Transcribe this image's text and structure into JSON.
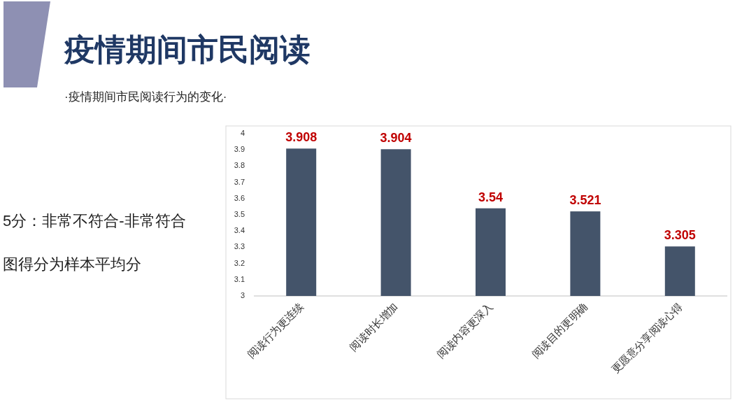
{
  "chart_data": {
    "type": "bar",
    "title": "疫情期间市民阅读",
    "subtitle": "·疫情期间市民阅读行为的变化·",
    "categories": [
      "阅读行为更连续",
      "阅读时长增加",
      "阅读内容更深入",
      "阅读目的更明确",
      "更愿意分享阅读心得"
    ],
    "values": [
      3.908,
      3.904,
      3.54,
      3.521,
      3.305
    ],
    "color": "#44546a",
    "ylim": [
      3,
      4
    ],
    "yticks": [
      3,
      3.1,
      3.2,
      3.3,
      3.4,
      3.5,
      3.6,
      3.7,
      3.8,
      3.9,
      4
    ],
    "data_labels": true,
    "annotations": [
      "5分：非常不符合-非常符合",
      "图得分为样本平均分"
    ]
  }
}
